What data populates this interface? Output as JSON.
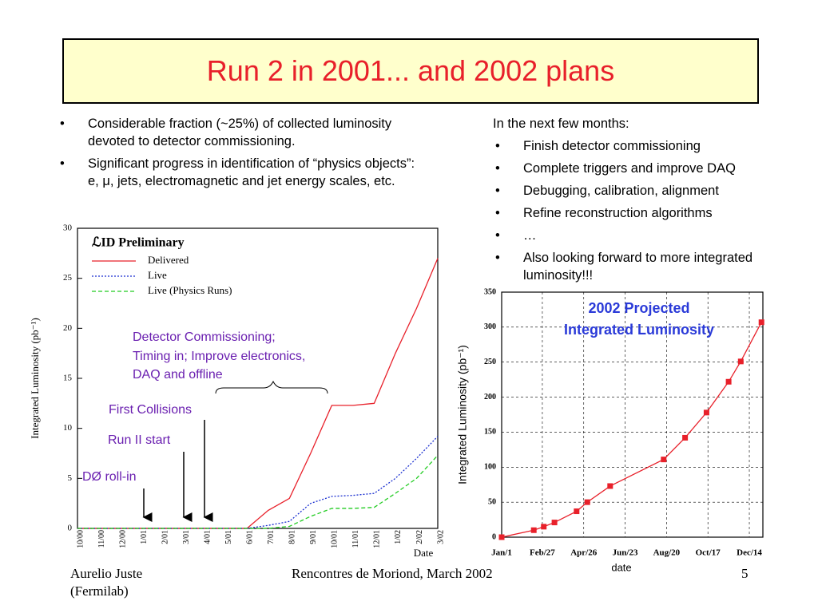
{
  "title": "Run 2 in 2001... and 2002 plans",
  "left_text": {
    "bullets": [
      "Considerable fraction (~25%) of collected luminosity devoted to detector commissioning.",
      "Significant progress in identification of “physics objects”: e, μ, jets, electromagnetic and jet energy scales, etc."
    ]
  },
  "right_text": {
    "intro": "In the next few months:",
    "bullets": [
      "Finish detector commissioning",
      "Complete triggers and improve DAQ",
      "Debugging, calibration, alignment",
      "Refine reconstruction algorithms",
      "…",
      "Also looking forward to more integrated luminosity!!!"
    ]
  },
  "chart_data": [
    {
      "type": "line",
      "title": "ℒID Preliminary",
      "y_label": "Integrated Luminosity (pb⁻¹)",
      "x_label": "Date",
      "categories": [
        "10/00",
        "11/00",
        "12/00",
        "1/01",
        "2/01",
        "3/01",
        "4/01",
        "5/01",
        "6/01",
        "7/01",
        "8/01",
        "9/01",
        "10/01",
        "11/01",
        "12/01",
        "1/02",
        "2/02",
        "3/02"
      ],
      "series": [
        {
          "name": "Delivered",
          "color": "#e8202a",
          "style": "solid",
          "values": [
            0,
            0,
            0,
            0,
            0,
            0,
            0,
            0,
            0,
            1.8,
            3,
            7.5,
            12.3,
            12.3,
            12.5,
            17.5,
            22,
            27
          ]
        },
        {
          "name": "Live",
          "color": "#1a2fd0",
          "style": "dotted",
          "values": [
            0,
            0,
            0,
            0,
            0,
            0,
            0,
            0,
            0,
            0.3,
            0.7,
            2.5,
            3.2,
            3.3,
            3.5,
            5,
            7,
            9.2
          ]
        },
        {
          "name": "Live (Physics Runs)",
          "color": "#22cc22",
          "style": "dashed",
          "values": [
            0,
            0,
            0,
            0,
            0,
            0,
            0,
            0,
            0,
            0,
            0.2,
            1.2,
            2,
            2,
            2.1,
            3.5,
            5,
            7.3
          ]
        }
      ],
      "ylim": [
        0,
        30
      ],
      "yticks": [
        0,
        5,
        10,
        15,
        20,
        25,
        30
      ],
      "grid": false,
      "annotations": [
        "Detector Commissioning;",
        "Timing in; Improve electronics,",
        "DAQ and offline",
        "First Collisions",
        "Run II start",
        "DØ roll-in"
      ]
    },
    {
      "type": "line",
      "title": [
        "2002 Projected",
        "Integrated Luminosity"
      ],
      "y_label": "Integrated Luminosity (pb⁻¹)",
      "x_label": "date",
      "x": [
        1,
        46,
        60,
        75,
        106,
        121,
        153,
        228,
        258,
        288,
        319,
        336,
        365
      ],
      "series": [
        {
          "color": "#e8202a",
          "style": "solid",
          "markers": true,
          "values": [
            0,
            10,
            15,
            21,
            37,
            50,
            73,
            111,
            142,
            178,
            222,
            251,
            307
          ]
        }
      ],
      "xlim": [
        1,
        367
      ],
      "xticks": [
        {
          "value": 1,
          "label": "Jan/1"
        },
        {
          "value": 58,
          "label": "Feb/27"
        },
        {
          "value": 116,
          "label": "Apr/26"
        },
        {
          "value": 174,
          "label": "Jun/23"
        },
        {
          "value": 232,
          "label": "Aug/20"
        },
        {
          "value": 290,
          "label": "Oct/17"
        },
        {
          "value": 348,
          "label": "Dec/14"
        }
      ],
      "ylim": [
        0,
        350
      ],
      "yticks": [
        0,
        50,
        100,
        150,
        200,
        250,
        300,
        350
      ],
      "grid": true
    }
  ],
  "footer": {
    "author": "Aurelio Juste",
    "affiliation": "(Fermilab)",
    "event": "Rencontres de Moriond, March 2002",
    "page": "5"
  }
}
